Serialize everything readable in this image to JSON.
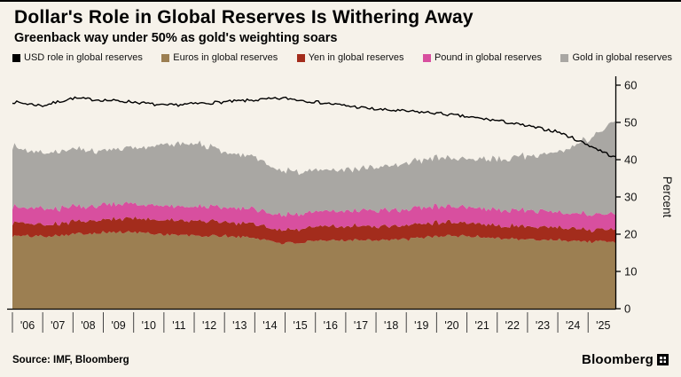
{
  "header": {
    "title": "Dollar's Role in Global Reserves Is Withering Away",
    "subtitle": "Greenback way under 50% as gold's weighting soars"
  },
  "theme": {
    "background": "#f6f2ea",
    "axis_color": "#000000",
    "text_color": "#111111"
  },
  "chart_data": {
    "type": "area",
    "title": "Dollar's Role in Global Reserves Is Withering Away",
    "subtitle": "Greenback way under 50% as gold's weighting soars",
    "ylabel": "Percent",
    "xlabel": "",
    "ylim": [
      0,
      60
    ],
    "yticks": [
      0,
      10,
      20,
      30,
      40,
      50,
      60
    ],
    "grid": false,
    "legend_position": "top",
    "x_range": [
      2006,
      2025.9
    ],
    "x_anchors": [
      2006,
      2007,
      2008,
      2009,
      2010,
      2011,
      2012,
      2013,
      2014,
      2015,
      2016,
      2017,
      2018,
      2019,
      2020,
      2021,
      2022,
      2023,
      2024,
      2025,
      2025.9
    ],
    "x_tick_years": [
      2006,
      2007,
      2008,
      2009,
      2010,
      2011,
      2012,
      2013,
      2014,
      2015,
      2016,
      2017,
      2018,
      2019,
      2020,
      2021,
      2022,
      2023,
      2024,
      2025
    ],
    "x_labels": [
      "'06",
      "'07",
      "'08",
      "'09",
      "'10",
      "'11",
      "'12",
      "'13",
      "'14",
      "'15",
      "'16",
      "'17",
      "'18",
      "'19",
      "'20",
      "'21",
      "'22",
      "'23",
      "'24",
      "'25"
    ],
    "series": [
      {
        "name": "USD role in global reserves",
        "type": "line",
        "color": "#000000",
        "values": [
          55.5,
          54.5,
          56.5,
          56,
          55.5,
          54.5,
          55,
          55.5,
          56,
          56.5,
          55.5,
          54.5,
          53.5,
          53,
          52.5,
          51.5,
          50.5,
          49,
          47.5,
          44,
          40.5
        ]
      },
      {
        "name": "Euros in global reserves",
        "type": "stacked-area",
        "color": "#9c7f52",
        "values": [
          19.5,
          19.5,
          20,
          20.5,
          20.5,
          20,
          19.5,
          19.5,
          19,
          17.5,
          18,
          18.5,
          18.5,
          18.5,
          19.5,
          19.5,
          19,
          18.5,
          18.5,
          18,
          18
        ]
      },
      {
        "name": "Yen in global reserves",
        "type": "stacked-area",
        "color": "#a32c1c",
        "values": [
          3.5,
          3.2,
          3.3,
          3.5,
          3.8,
          3.8,
          4,
          3.8,
          3.7,
          3.5,
          3.8,
          3.8,
          3.7,
          3.8,
          3.8,
          3.7,
          3.5,
          3.5,
          3.5,
          3.3,
          3.3
        ]
      },
      {
        "name": "Pound in global reserves",
        "type": "stacked-area",
        "color": "#d84f9f",
        "values": [
          4.2,
          4.3,
          4,
          4,
          3.9,
          3.9,
          3.8,
          3.9,
          4,
          4,
          4,
          4.2,
          4.3,
          4.3,
          4.3,
          4.4,
          4.3,
          4.3,
          4.2,
          4,
          4
        ]
      },
      {
        "name": "Gold in global reserves",
        "type": "stacked-area",
        "color": "#a9a7a3",
        "values": [
          16,
          15,
          15.5,
          14.5,
          15,
          16.5,
          17,
          15,
          14,
          11.5,
          11,
          11,
          11.5,
          12.5,
          13,
          13,
          13.5,
          14.5,
          16,
          20,
          25
        ]
      }
    ]
  },
  "footer": {
    "source": "Source: IMF, Bloomberg",
    "brand": "Bloomberg"
  }
}
